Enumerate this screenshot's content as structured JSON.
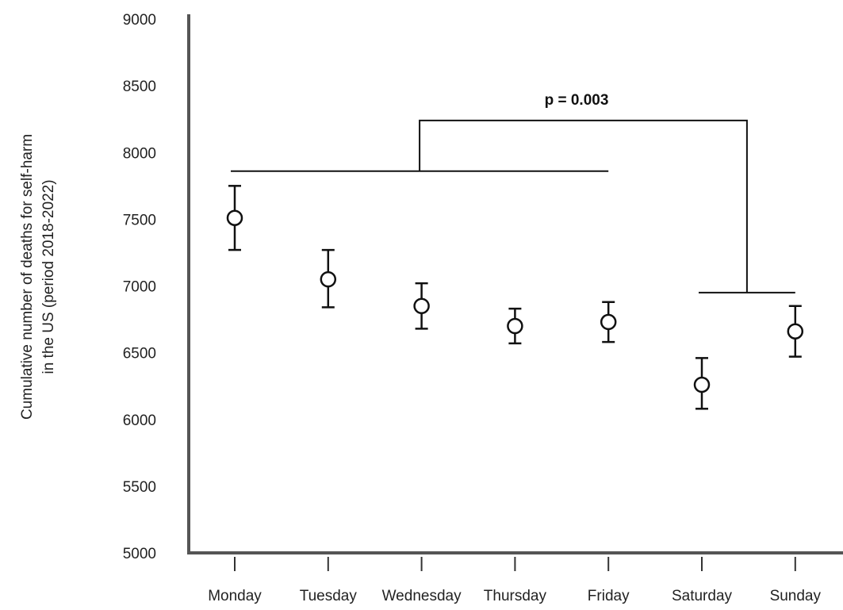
{
  "chart_data": {
    "type": "scatter",
    "categories": [
      "Monday",
      "Tuesday",
      "Wednesday",
      "Thursday",
      "Friday",
      "Saturday",
      "Sunday"
    ],
    "values": [
      7510,
      7050,
      6850,
      6700,
      6730,
      6260,
      6660
    ],
    "error_low": [
      7270,
      6840,
      6680,
      6570,
      6580,
      6080,
      6470
    ],
    "error_high": [
      7750,
      7270,
      7020,
      6830,
      6880,
      6460,
      6850
    ],
    "ylabel_lines": [
      "Cumulative number of deaths for self-harm",
      "in the US (period 2018-2022)"
    ],
    "xlabel": "",
    "ylim": [
      5000,
      9000
    ],
    "yticks": [
      5000,
      5500,
      6000,
      6500,
      7000,
      7500,
      8000,
      8500,
      9000
    ],
    "ytick_labels": [
      "5000",
      "5500",
      "6000",
      "6500",
      "7000",
      "7500",
      "8000",
      "8500",
      "9000"
    ],
    "grid": false,
    "annotation": {
      "text": "p = 0.003",
      "group_weekdays": [
        "Monday",
        "Tuesday",
        "Wednesday",
        "Thursday",
        "Friday"
      ],
      "group_weekend": [
        "Saturday",
        "Sunday"
      ],
      "weekday_bar_y": 7860,
      "weekend_bar_y": 6950,
      "connector_y": 8240
    },
    "colors": {
      "axis": "#555555",
      "marker_stroke": "#111111",
      "marker_fill": "#ffffff",
      "text": "#222222"
    }
  }
}
